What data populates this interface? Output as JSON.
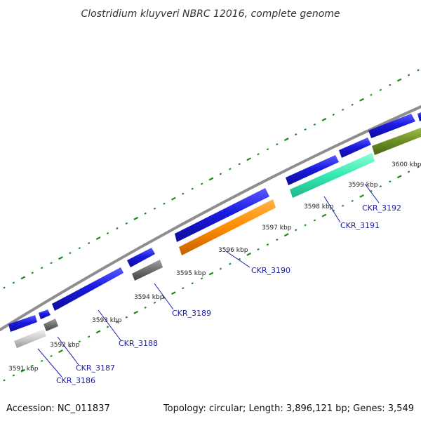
{
  "title": "Clostridium kluyveri NBRC 12016, complete genome",
  "footer": {
    "accession": "Accession: NC_011837",
    "summary": "Topology: circular; Length: 3,896,121 bp; Genes: 3,549"
  },
  "colors": {
    "backbone": "#8e8e8e",
    "cds_forward": "#1a1ae0",
    "tick_dots": "#1a8a1a",
    "gene_label": "#1a1aa6",
    "gc_orange": "#ff8c00",
    "gc_teal": "#33e8b0",
    "gc_olive": "#6b8e23",
    "gc_gray": "#6e6e6e",
    "gc_light": "#c8c8c8"
  },
  "ticks": [
    {
      "label": "3591 kbp"
    },
    {
      "label": "3592 kbp"
    },
    {
      "label": "3593 kbp"
    },
    {
      "label": "3594 kbp"
    },
    {
      "label": "3595 kbp"
    },
    {
      "label": "3596 kbp"
    },
    {
      "label": "3597 kbp"
    },
    {
      "label": "3598 kbp"
    },
    {
      "label": "3599 kbp"
    },
    {
      "label": "3600 kbp"
    }
  ],
  "gene_labels": [
    {
      "label": "CKR_3186"
    },
    {
      "label": "CKR_3187"
    },
    {
      "label": "CKR_3188"
    },
    {
      "label": "CKR_3189"
    },
    {
      "label": "CKR_3190"
    },
    {
      "label": "CKR_3191"
    },
    {
      "label": "CKR_3192"
    }
  ]
}
